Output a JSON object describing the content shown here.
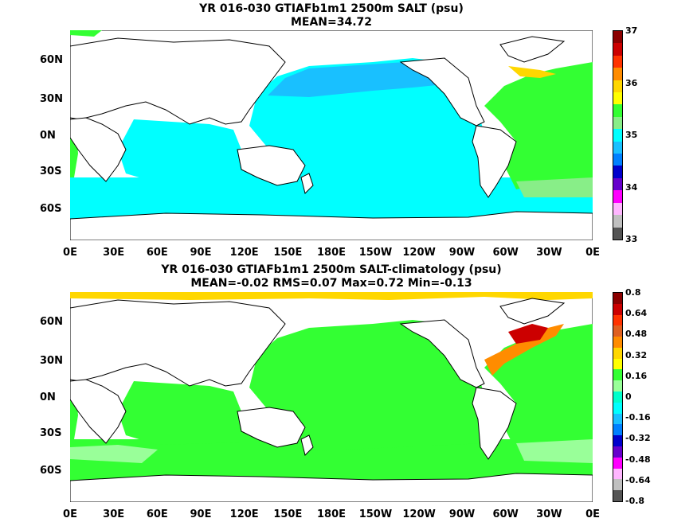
{
  "top": {
    "title_line1": "YR 016-030 GTIAFb1m1 2500m SALT (psu)",
    "title_line2": "MEAN=34.72",
    "colorbar_labels": [
      "37",
      "36",
      "35",
      "34",
      "33"
    ],
    "colorbar_colors": [
      "#8b0000",
      "#cc0000",
      "#ff3300",
      "#ff8c00",
      "#ffd700",
      "#ffff00",
      "#33ff33",
      "#88ee88",
      "#00ffff",
      "#19c0ff",
      "#0080ff",
      "#0000cc",
      "#6600cc",
      "#ff00ff",
      "#ffb6ff",
      "#c0c0c0",
      "#555555"
    ]
  },
  "bottom": {
    "title_line1": "YR 016-030 GTIAFb1m1 2500m SALT-climatology (psu)",
    "title_line2": "MEAN=-0.02   RMS=0.07   Max=0.72   Min=-0.13",
    "colorbar_labels": [
      "0.8",
      "0.64",
      "0.48",
      "0.32",
      "0.16",
      "0",
      "-0.16",
      "-0.32",
      "-0.48",
      "-0.64",
      "-0.8"
    ],
    "colorbar_colors": [
      "#8b0000",
      "#cc0000",
      "#ff3300",
      "#e06020",
      "#ff8c00",
      "#ffd700",
      "#ffff00",
      "#33ff33",
      "#99ff99",
      "#00ffcc",
      "#00ffff",
      "#19c0ff",
      "#0080ff",
      "#0000cc",
      "#6600cc",
      "#ff00ff",
      "#ffb6ff",
      "#c0c0c0",
      "#555555"
    ]
  },
  "axes": {
    "lat_labels": [
      "60N",
      "30N",
      "0N",
      "30S",
      "60S"
    ],
    "lon_labels": [
      "0E",
      "30E",
      "60E",
      "90E",
      "120E",
      "150E",
      "180E",
      "150W",
      "120W",
      "90W",
      "60W",
      "30W",
      "0E"
    ]
  },
  "colors": {
    "ocean_top": "#00ffff",
    "npac_top": "#19c0ff",
    "atlantic_top": "#33ff33",
    "ocean_bottom": "#33ff33",
    "anomaly_pos": "#cc0000",
    "land": "#ffffff"
  }
}
